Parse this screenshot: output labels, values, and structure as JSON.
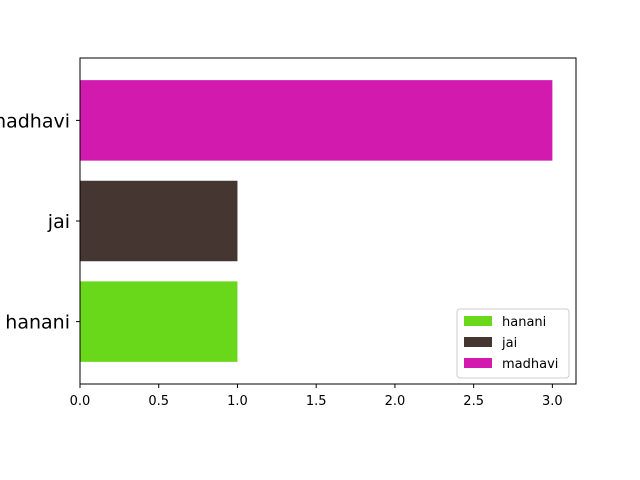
{
  "chart_data": {
    "type": "bar",
    "orientation": "horizontal",
    "title": "",
    "xlabel": "",
    "ylabel": "",
    "categories": [
      "hanani",
      "jai",
      "madhavi"
    ],
    "values": [
      1,
      1,
      3
    ],
    "colors": [
      "#69d81a",
      "#463632",
      "#d21aaf"
    ],
    "xlim": [
      0,
      3.15
    ],
    "xticks": [
      0.0,
      0.5,
      1.0,
      1.5,
      2.0,
      2.5,
      3.0
    ],
    "xtick_labels": [
      "0.0",
      "0.5",
      "1.0",
      "1.5",
      "2.0",
      "2.5",
      "3.0"
    ],
    "grid": false,
    "legend": {
      "position": "lower-right",
      "entries": [
        "hanani",
        "jai",
        "madhavi"
      ]
    }
  }
}
